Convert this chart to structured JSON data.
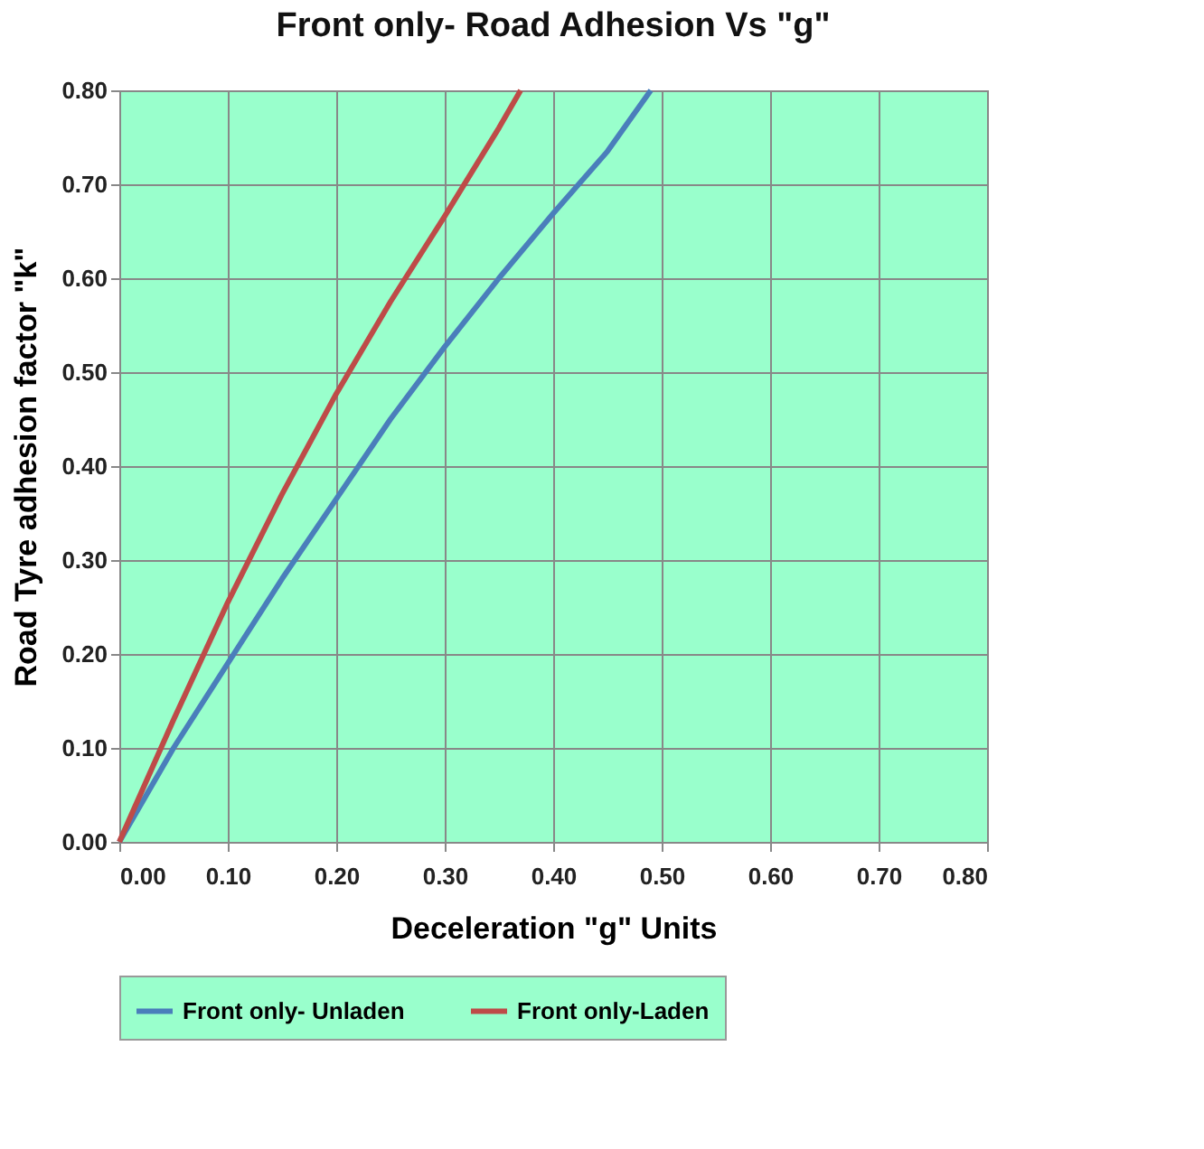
{
  "chart_data": {
    "type": "line",
    "title": "Front only- Road Adhesion Vs \"g\"",
    "xlabel": "Deceleration \"g\" Units",
    "ylabel": "Road Tyre adhesion factor \"k\"",
    "x": [
      0,
      0.05,
      0.1,
      0.15,
      0.2,
      0.25,
      0.3,
      0.35,
      0.4,
      0.45,
      0.49
    ],
    "series": [
      {
        "name": "Front only- Unladen",
        "color": "#4a7ebb",
        "values": [
          0,
          0.1,
          0.19,
          0.28,
          0.365,
          0.45,
          0.527,
          0.6,
          0.669,
          0.735,
          0.8
        ]
      },
      {
        "name": "Front only-Laden",
        "color": "#be4b48",
        "x": [
          0,
          0.05,
          0.1,
          0.15,
          0.2,
          0.25,
          0.3,
          0.35,
          0.37
        ],
        "values": [
          0,
          0.13,
          0.255,
          0.37,
          0.477,
          0.575,
          0.666,
          0.76,
          0.8
        ]
      }
    ],
    "xlim": [
      0,
      0.8
    ],
    "ylim": [
      0,
      0.8
    ],
    "xticks": [
      {
        "value": 0,
        "label": "0.00"
      },
      {
        "value": 0.1,
        "label": "0.10"
      },
      {
        "value": 0.2,
        "label": "0.20"
      },
      {
        "value": 0.3,
        "label": "0.30"
      },
      {
        "value": 0.4,
        "label": "0.40"
      },
      {
        "value": 0.5,
        "label": "0.50"
      },
      {
        "value": 0.6,
        "label": "0.60"
      },
      {
        "value": 0.7,
        "label": "0.70"
      },
      {
        "value": 0.8,
        "label": "0.80"
      }
    ],
    "yticks": [
      {
        "value": 0,
        "label": "0.00"
      },
      {
        "value": 0.1,
        "label": "0.10"
      },
      {
        "value": 0.2,
        "label": "0.20"
      },
      {
        "value": 0.3,
        "label": "0.30"
      },
      {
        "value": 0.4,
        "label": "0.40"
      },
      {
        "value": 0.5,
        "label": "0.50"
      },
      {
        "value": 0.6,
        "label": "0.60"
      },
      {
        "value": 0.7,
        "label": "0.70"
      },
      {
        "value": 0.8,
        "label": "0.80"
      }
    ],
    "grid": true,
    "legend": "bottom",
    "marker": "none",
    "line_style": "solid"
  }
}
